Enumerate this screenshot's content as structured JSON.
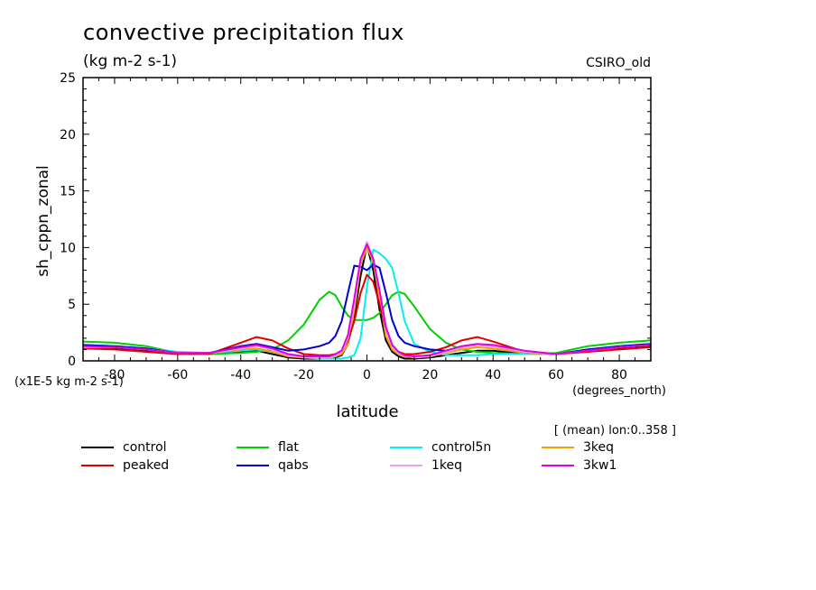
{
  "header": {
    "title": "convective precipitation flux",
    "units": "(kg m-2 s-1)",
    "model": "CSIRO_old"
  },
  "notes": {
    "scale": "(x1E-5 kg m-2 s-1)",
    "x_units": "(degrees_north)",
    "lon": "[ (mean) lon:0..358 ]"
  },
  "chart_data": {
    "type": "line",
    "title": "convective precipitation flux",
    "xlabel": "latitude",
    "ylabel": "sh_cppn_zonal",
    "xlim": [
      -90,
      90
    ],
    "ylim": [
      0,
      25
    ],
    "xticks": [
      -80,
      -60,
      -40,
      -20,
      0,
      20,
      40,
      60,
      80
    ],
    "yticks": [
      0,
      5,
      10,
      15,
      20,
      25
    ],
    "grid": false,
    "legend_position": "below",
    "x": [
      -90,
      -80,
      -70,
      -60,
      -50,
      -40,
      -35,
      -30,
      -25,
      -20,
      -15,
      -12,
      -10,
      -8,
      -6,
      -4,
      -2,
      0,
      2,
      4,
      6,
      8,
      10,
      12,
      15,
      20,
      25,
      30,
      35,
      40,
      50,
      60,
      70,
      80,
      90
    ],
    "series": [
      {
        "name": "control",
        "color": "#000000",
        "values": [
          1.2,
          1.1,
          0.9,
          0.7,
          0.6,
          0.8,
          0.9,
          0.6,
          0.3,
          0.2,
          0.2,
          0.2,
          0.3,
          0.5,
          1.5,
          4.0,
          7.5,
          10.2,
          8.0,
          4.5,
          1.8,
          0.8,
          0.4,
          0.2,
          0.2,
          0.3,
          0.5,
          0.7,
          0.9,
          0.9,
          0.6,
          0.6,
          0.9,
          1.1,
          1.3
        ]
      },
      {
        "name": "flat",
        "color": "#00d000",
        "values": [
          1.7,
          1.6,
          1.3,
          0.7,
          0.6,
          0.7,
          0.8,
          1.0,
          1.8,
          3.2,
          5.4,
          6.1,
          5.8,
          4.8,
          4.0,
          3.6,
          3.6,
          3.6,
          3.8,
          4.2,
          5.0,
          5.8,
          6.1,
          5.9,
          4.8,
          2.8,
          1.6,
          1.0,
          0.8,
          0.7,
          0.6,
          0.7,
          1.3,
          1.6,
          1.8
        ]
      },
      {
        "name": "control5n",
        "color": "#00f0f0",
        "values": [
          1.4,
          1.3,
          1.1,
          0.8,
          0.7,
          0.9,
          1.0,
          0.8,
          0.5,
          0.3,
          0.2,
          0.2,
          0.2,
          0.2,
          0.3,
          0.5,
          2.0,
          6.5,
          9.8,
          9.5,
          9.0,
          8.2,
          6.0,
          3.5,
          1.5,
          0.8,
          0.5,
          0.5,
          0.5,
          0.6,
          0.6,
          0.6,
          1.0,
          1.3,
          1.5
        ]
      },
      {
        "name": "3keq",
        "color": "#f0a000",
        "values": [
          1.3,
          1.2,
          1.0,
          0.7,
          0.7,
          1.0,
          1.1,
          0.8,
          0.4,
          0.3,
          0.3,
          0.3,
          0.4,
          0.6,
          1.5,
          4.5,
          8.5,
          10.0,
          8.8,
          5.5,
          2.2,
          1.0,
          0.6,
          0.4,
          0.3,
          0.4,
          0.7,
          1.0,
          1.2,
          1.1,
          0.7,
          0.6,
          0.9,
          1.2,
          1.4
        ]
      },
      {
        "name": "peaked",
        "color": "#e00000",
        "values": [
          1.1,
          1.0,
          0.8,
          0.6,
          0.6,
          1.6,
          2.1,
          1.8,
          1.1,
          0.6,
          0.5,
          0.5,
          0.6,
          0.9,
          1.8,
          3.5,
          6.0,
          7.6,
          7.0,
          5.0,
          2.8,
          1.4,
          0.8,
          0.6,
          0.6,
          0.8,
          1.2,
          1.8,
          2.1,
          1.7,
          0.8,
          0.6,
          0.8,
          1.0,
          1.2
        ]
      },
      {
        "name": "qabs",
        "color": "#0000d0",
        "values": [
          1.4,
          1.3,
          1.1,
          0.7,
          0.7,
          1.3,
          1.5,
          1.2,
          0.9,
          1.0,
          1.3,
          1.6,
          2.2,
          3.5,
          6.0,
          8.4,
          8.3,
          8.0,
          8.5,
          8.2,
          6.0,
          3.6,
          2.2,
          1.6,
          1.3,
          1.0,
          0.9,
          1.2,
          1.4,
          1.3,
          0.8,
          0.6,
          1.0,
          1.3,
          1.5
        ]
      },
      {
        "name": "1keq",
        "color": "#f0a0f0",
        "values": [
          1.2,
          1.2,
          1.0,
          0.7,
          0.7,
          1.1,
          1.3,
          1.0,
          0.5,
          0.3,
          0.3,
          0.3,
          0.5,
          0.8,
          2.0,
          5.0,
          8.8,
          10.5,
          9.0,
          6.0,
          2.8,
          1.3,
          0.7,
          0.5,
          0.3,
          0.4,
          0.8,
          1.2,
          1.4,
          1.3,
          0.8,
          0.6,
          0.9,
          1.2,
          1.4
        ]
      },
      {
        "name": "3kw1",
        "color": "#e000e0",
        "values": [
          1.3,
          1.2,
          1.0,
          0.7,
          0.7,
          1.2,
          1.4,
          1.1,
          0.6,
          0.4,
          0.4,
          0.4,
          0.6,
          0.9,
          2.3,
          5.5,
          9.0,
          10.3,
          9.0,
          6.2,
          3.0,
          1.4,
          0.8,
          0.5,
          0.4,
          0.5,
          0.9,
          1.3,
          1.5,
          1.4,
          0.9,
          0.6,
          0.9,
          1.2,
          1.4
        ]
      }
    ]
  },
  "legend_rows": [
    [
      "control",
      "flat",
      "control5n",
      "3keq"
    ],
    [
      "peaked",
      "qabs",
      "1keq",
      "3kw1"
    ]
  ]
}
